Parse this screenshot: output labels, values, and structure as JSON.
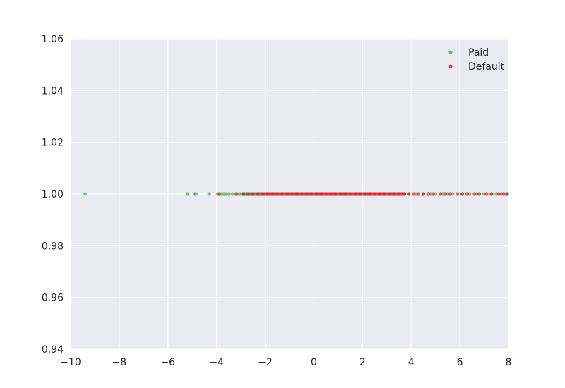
{
  "chart_data": {
    "type": "scatter",
    "xlim": [
      -10,
      8
    ],
    "ylim": [
      0.94,
      1.06
    ],
    "xticks": [
      -10,
      -8,
      -6,
      -4,
      -2,
      0,
      2,
      4,
      6,
      8
    ],
    "xtick_labels": [
      "−10",
      "−8",
      "−6",
      "−4",
      "−2",
      "0",
      "2",
      "4",
      "6",
      "8"
    ],
    "yticks": [
      0.94,
      0.96,
      0.98,
      1.0,
      1.02,
      1.04,
      1.06
    ],
    "ytick_labels": [
      "0.94",
      "0.96",
      "0.98",
      "1.00",
      "1.02",
      "1.04",
      "1.06"
    ],
    "grid": true,
    "legend_position": "top-right",
    "series": [
      {
        "name": "Paid",
        "color": "#4daf4a",
        "x": [
          -9.4,
          -5.2,
          -4.9,
          -4.85,
          -4.3,
          -3.95,
          -3.8,
          -3.7,
          -3.6,
          -3.5,
          -3.35,
          -3.15,
          -3.05,
          -2.95,
          -2.85,
          -2.75,
          -2.65,
          -2.55,
          -2.45,
          -2.35,
          -2.25,
          -2.1,
          -1.9,
          -1.7,
          -1.5,
          -1.2,
          -0.9,
          -0.5,
          0.0,
          0.5,
          1.0,
          1.5,
          2.0,
          2.5,
          3.0,
          3.5,
          3.9,
          4.2,
          4.5,
          4.8,
          5.0,
          5.3,
          5.5,
          5.7,
          6.1,
          6.4,
          6.7,
          7.0,
          7.3,
          7.5,
          7.7,
          7.9
        ],
        "y": [
          1.0,
          1.0,
          1.0,
          1.0,
          1.0,
          1.0,
          1.0,
          1.0,
          1.0,
          1.0,
          1.0,
          1.0,
          1.0,
          1.0,
          1.0,
          1.0,
          1.0,
          1.0,
          1.0,
          1.0,
          1.0,
          1.0,
          1.0,
          1.0,
          1.0,
          1.0,
          1.0,
          1.0,
          1.0,
          1.0,
          1.0,
          1.0,
          1.0,
          1.0,
          1.0,
          1.0,
          1.0,
          1.0,
          1.0,
          1.0,
          1.0,
          1.0,
          1.0,
          1.0,
          1.0,
          1.0,
          1.0,
          1.0,
          1.0,
          1.0,
          1.0,
          1.0
        ]
      },
      {
        "name": "Default",
        "color": "#e41a1c",
        "x": [
          -3.9,
          -3.2,
          -2.9,
          -2.7,
          -2.5,
          -2.3,
          -2.1,
          -1.9,
          -1.7,
          -1.5,
          -1.3,
          -1.1,
          -0.9,
          -0.7,
          -0.5,
          -0.3,
          -0.1,
          0.1,
          0.3,
          0.5,
          0.7,
          0.9,
          1.1,
          1.3,
          1.5,
          1.7,
          1.9,
          2.1,
          2.3,
          2.5,
          2.7,
          2.9,
          3.1,
          3.3,
          3.5,
          3.7,
          3.9,
          4.1,
          4.3,
          4.5,
          4.7,
          4.9,
          5.2,
          5.4,
          5.6,
          5.9,
          6.1,
          6.3,
          6.6,
          6.8,
          7.1,
          7.3,
          7.6,
          7.8,
          7.95
        ],
        "y": [
          1.0,
          1.0,
          1.0,
          1.0,
          1.0,
          1.0,
          1.0,
          1.0,
          1.0,
          1.0,
          1.0,
          1.0,
          1.0,
          1.0,
          1.0,
          1.0,
          1.0,
          1.0,
          1.0,
          1.0,
          1.0,
          1.0,
          1.0,
          1.0,
          1.0,
          1.0,
          1.0,
          1.0,
          1.0,
          1.0,
          1.0,
          1.0,
          1.0,
          1.0,
          1.0,
          1.0,
          1.0,
          1.0,
          1.0,
          1.0,
          1.0,
          1.0,
          1.0,
          1.0,
          1.0,
          1.0,
          1.0,
          1.0,
          1.0,
          1.0,
          1.0,
          1.0,
          1.0,
          1.0,
          1.0
        ]
      }
    ]
  }
}
